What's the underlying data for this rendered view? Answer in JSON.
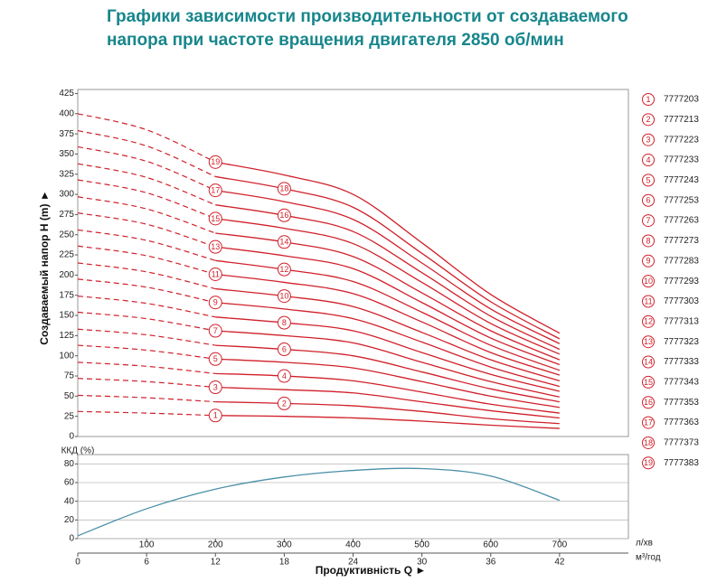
{
  "chart_data": [
    {
      "type": "line",
      "title": [
        "Графики зависимости производительности от создаваемого",
        "напора при частоте вращения двигателя 2850 об/мин"
      ],
      "ylabel": "Создаваемый напор H (m) ►",
      "xlim": [
        0,
        800
      ],
      "ylim": [
        0,
        430
      ],
      "yticks": [
        0,
        25,
        50,
        75,
        100,
        125,
        150,
        175,
        200,
        225,
        250,
        275,
        300,
        325,
        350,
        375,
        400,
        425
      ],
      "grid": false,
      "color": "#d0202a",
      "x": [
        0,
        100,
        200,
        300,
        400,
        500,
        600,
        700
      ],
      "series": [
        {
          "label": "1",
          "name": "7777203",
          "dashed_values": [
            31,
            29,
            26,
            null,
            null,
            null,
            null,
            null
          ],
          "values": [
            null,
            null,
            26,
            25,
            23,
            19,
            14,
            10
          ]
        },
        {
          "label": "2",
          "name": "7777213",
          "dashed_values": [
            51,
            48,
            43,
            null,
            null,
            null,
            null,
            null
          ],
          "values": [
            null,
            null,
            43,
            41,
            38,
            31,
            22,
            16
          ]
        },
        {
          "label": "3",
          "name": "7777223",
          "dashed_values": [
            72,
            68,
            61,
            null,
            null,
            null,
            null,
            null
          ],
          "values": [
            null,
            null,
            61,
            58,
            54,
            43,
            32,
            23
          ]
        },
        {
          "label": "4",
          "name": "7777233",
          "dashed_values": [
            92,
            87,
            78,
            null,
            null,
            null,
            null,
            null
          ],
          "values": [
            null,
            null,
            78,
            75,
            69,
            55,
            40,
            29
          ]
        },
        {
          "label": "5",
          "name": "7777243",
          "dashed_values": [
            113,
            107,
            96,
            null,
            null,
            null,
            null,
            null
          ],
          "values": [
            null,
            null,
            96,
            92,
            85,
            68,
            50,
            36
          ]
        },
        {
          "label": "6",
          "name": "7777253",
          "dashed_values": [
            133,
            126,
            113,
            null,
            null,
            null,
            null,
            null
          ],
          "values": [
            null,
            null,
            113,
            108,
            100,
            80,
            59,
            43
          ]
        },
        {
          "label": "7",
          "name": "7777263",
          "dashed_values": [
            154,
            146,
            131,
            null,
            null,
            null,
            null,
            null
          ],
          "values": [
            null,
            null,
            131,
            125,
            116,
            92,
            68,
            49
          ]
        },
        {
          "label": "8",
          "name": "7777273",
          "dashed_values": [
            174,
            165,
            148,
            null,
            null,
            null,
            null,
            null
          ],
          "values": [
            null,
            null,
            148,
            141,
            131,
            104,
            77,
            56
          ]
        },
        {
          "label": "9",
          "name": "7777283",
          "dashed_values": [
            195,
            185,
            166,
            null,
            null,
            null,
            null,
            null
          ],
          "values": [
            null,
            null,
            166,
            158,
            146,
            117,
            86,
            62
          ]
        },
        {
          "label": "10",
          "name": "7777293",
          "dashed_values": [
            215,
            204,
            183,
            null,
            null,
            null,
            null,
            null
          ],
          "values": [
            null,
            null,
            183,
            174,
            161,
            129,
            95,
            69
          ]
        },
        {
          "label": "11",
          "name": "7777303",
          "dashed_values": [
            236,
            224,
            201,
            null,
            null,
            null,
            null,
            null
          ],
          "values": [
            null,
            null,
            201,
            191,
            177,
            142,
            104,
            76
          ]
        },
        {
          "label": "12",
          "name": "7777313",
          "dashed_values": [
            256,
            243,
            218,
            null,
            null,
            null,
            null,
            null
          ],
          "values": [
            null,
            null,
            218,
            207,
            192,
            154,
            113,
            82
          ]
        },
        {
          "label": "13",
          "name": "7777323",
          "dashed_values": [
            277,
            263,
            235,
            null,
            null,
            null,
            null,
            null
          ],
          "values": [
            null,
            null,
            235,
            224,
            208,
            166,
            122,
            89
          ]
        },
        {
          "label": "14",
          "name": "7777333",
          "dashed_values": [
            297,
            282,
            252,
            null,
            null,
            null,
            null,
            null
          ],
          "values": [
            null,
            null,
            252,
            241,
            223,
            178,
            131,
            95
          ]
        },
        {
          "label": "15",
          "name": "7777343",
          "dashed_values": [
            318,
            302,
            270,
            null,
            null,
            null,
            null,
            null
          ],
          "values": [
            null,
            null,
            270,
            258,
            239,
            191,
            140,
            102
          ]
        },
        {
          "label": "16",
          "name": "7777353",
          "dashed_values": [
            338,
            321,
            287,
            null,
            null,
            null,
            null,
            null
          ],
          "values": [
            null,
            null,
            287,
            274,
            254,
            203,
            149,
            108
          ]
        },
        {
          "label": "17",
          "name": "7777363",
          "dashed_values": [
            359,
            341,
            305,
            null,
            null,
            null,
            null,
            null
          ],
          "values": [
            null,
            null,
            305,
            291,
            269,
            215,
            158,
            115
          ]
        },
        {
          "label": "18",
          "name": "7777373",
          "dashed_values": [
            379,
            360,
            322,
            null,
            null,
            null,
            null,
            null
          ],
          "values": [
            null,
            null,
            322,
            307,
            284,
            227,
            167,
            121
          ]
        },
        {
          "label": "19",
          "name": "7777383",
          "dashed_values": [
            400,
            380,
            340,
            null,
            null,
            null,
            null,
            null
          ],
          "values": [
            null,
            null,
            340,
            324,
            300,
            240,
            176,
            128
          ]
        }
      ]
    },
    {
      "type": "line",
      "ylabel": "ККД (%)",
      "xlabel": "Продуктивність Q ►",
      "xlim": [
        0,
        800
      ],
      "ylim": [
        0,
        90
      ],
      "yticks": [
        0,
        20,
        40,
        60,
        80
      ],
      "xticks": [
        100,
        200,
        300,
        400,
        500,
        600,
        700
      ],
      "x_unit": "л/хв",
      "x2lim": [
        0,
        48
      ],
      "x2ticks": [
        0,
        6,
        12,
        18,
        24,
        30,
        36,
        42
      ],
      "x2_unit": "м³/год",
      "grid": true,
      "x": [
        0,
        100,
        200,
        300,
        400,
        500,
        600,
        700
      ],
      "series": [
        {
          "color": "#4a8fa8",
          "values": [
            3,
            32,
            53,
            66,
            73,
            75,
            67,
            41
          ]
        }
      ]
    }
  ]
}
